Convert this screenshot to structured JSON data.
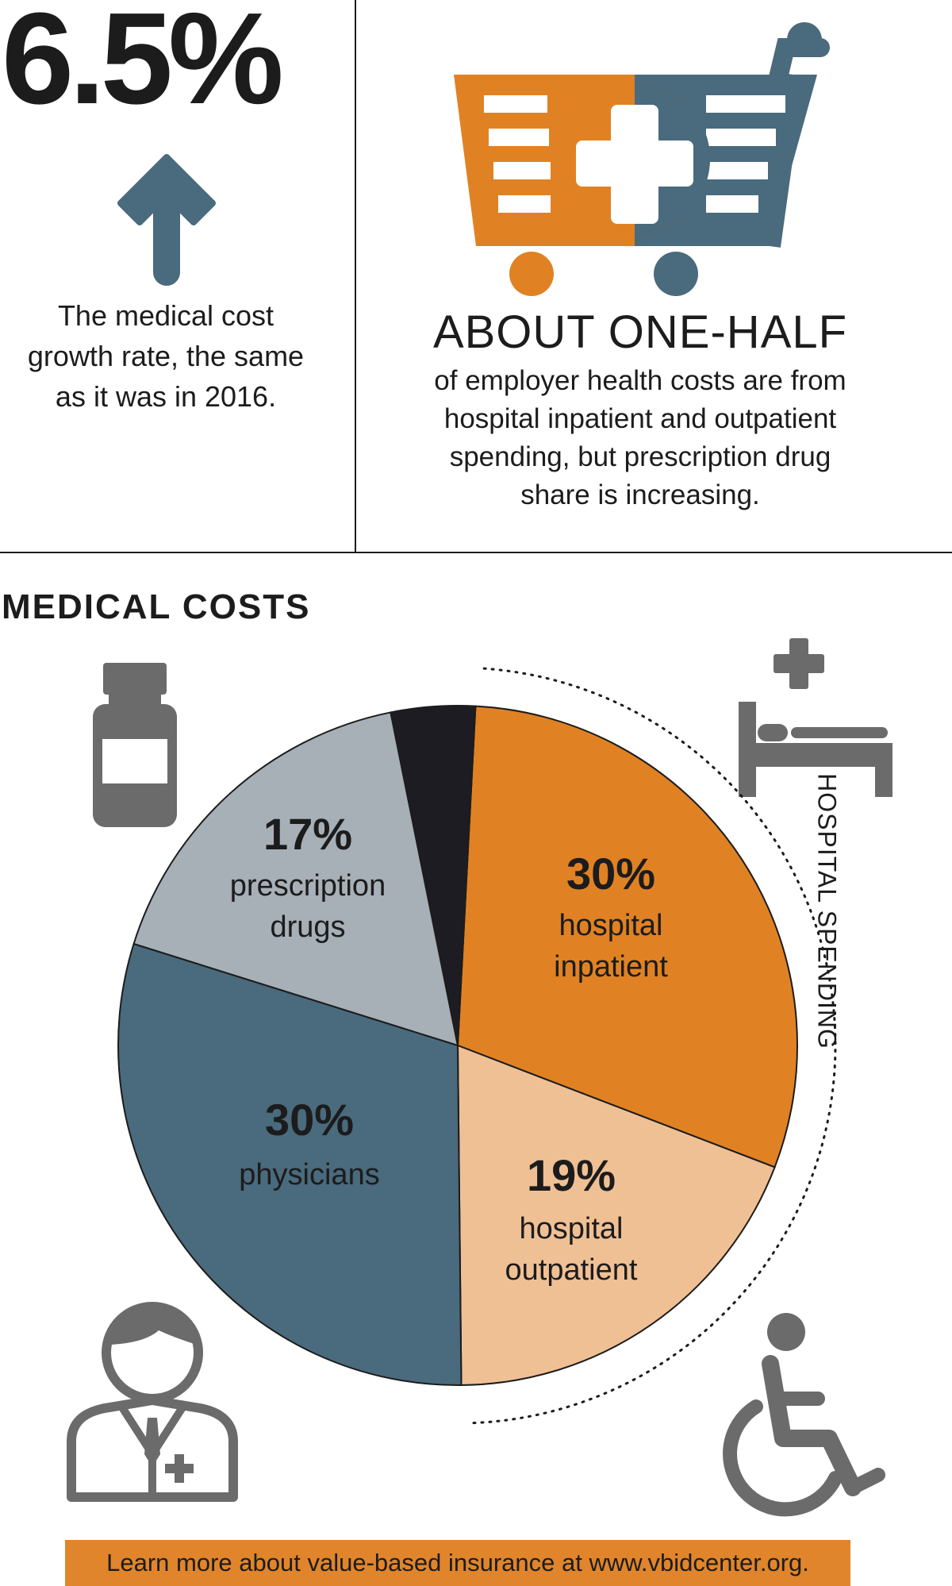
{
  "stat": {
    "value": "6.5%",
    "description_lines": [
      "The medical cost",
      "growth rate, the same",
      "as it was in 2016."
    ]
  },
  "headline": {
    "title": "ABOUT ONE-HALF",
    "description_lines": [
      "of employer health costs are from",
      "hospital inpatient and outpatient",
      "spending, but prescription drug",
      "share is increasing."
    ]
  },
  "section_title": "MEDICAL COSTS",
  "chart_data": {
    "type": "pie",
    "title": "MEDICAL COSTS",
    "slices": [
      {
        "pct": "30%",
        "label_lines": [
          "hospital",
          "inpatient"
        ],
        "value": 30,
        "color": "#e08224"
      },
      {
        "pct": "19%",
        "label_lines": [
          "hospital",
          "outpatient"
        ],
        "value": 19,
        "color": "#f0c095"
      },
      {
        "pct": "30%",
        "label_lines": [
          "physicians"
        ],
        "value": 30,
        "color": "#4a6a7d"
      },
      {
        "pct": "17%",
        "label_lines": [
          "prescription",
          "drugs"
        ],
        "value": 17,
        "color": "#a7afb7"
      },
      {
        "pct": "",
        "label_lines": [],
        "value": 4,
        "color": "#1c1c22"
      }
    ],
    "annotation": "HOSPITAL SPENDING"
  },
  "icons": [
    "plus-icon",
    "shopping-cart-icon",
    "arrow-up-icon",
    "pill-bottle-icon",
    "hospital-bed-icon",
    "doctor-icon",
    "wheelchair-icon"
  ],
  "colors": {
    "orange": "#e0852b",
    "slate": "#4a6a7d"
  },
  "footer": "Learn more about value-based insurance at www.vbidcenter.org."
}
